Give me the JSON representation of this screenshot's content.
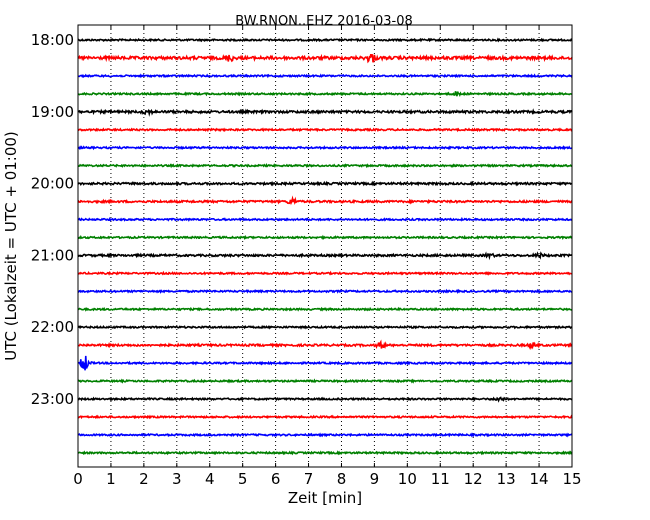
{
  "chart_data": {
    "type": "line",
    "title": "BW.RNON..EHZ 2016-03-08",
    "xlabel": "Zeit  [min]",
    "ylabel": "UTC (Lokalzeit = UTC + 01:00)",
    "xlim": [
      0,
      15
    ],
    "x_ticks": [
      "0",
      "1",
      "2",
      "3",
      "4",
      "5",
      "6",
      "7",
      "8",
      "9",
      "10",
      "11",
      "12",
      "13",
      "14",
      "15"
    ],
    "y_ticks": [
      {
        "label": "18:00",
        "trace_index": 0
      },
      {
        "label": "19:00",
        "trace_index": 4
      },
      {
        "label": "20:00",
        "trace_index": 8
      },
      {
        "label": "21:00",
        "trace_index": 12
      },
      {
        "label": "22:00",
        "trace_index": 16
      },
      {
        "label": "23:00",
        "trace_index": 20
      }
    ],
    "grid": "vertical-dotted",
    "trace_interval_min": 15,
    "series_colors": [
      "#000000",
      "#ff0000",
      "#0000ff",
      "#008000"
    ],
    "traces": [
      {
        "start": "18:00",
        "color": "#000000",
        "amplitude": 0.1,
        "events": []
      },
      {
        "start": "18:15",
        "color": "#ff0000",
        "amplitude": 0.18,
        "events": [
          {
            "t": 4.6,
            "amp": 0.35
          },
          {
            "t": 8.9,
            "amp": 0.55
          }
        ]
      },
      {
        "start": "18:30",
        "color": "#0000ff",
        "amplitude": 0.1,
        "events": []
      },
      {
        "start": "18:45",
        "color": "#008000",
        "amplitude": 0.1,
        "events": [
          {
            "t": 11.5,
            "amp": 0.25
          }
        ]
      },
      {
        "start": "19:00",
        "color": "#000000",
        "amplitude": 0.14,
        "events": [
          {
            "t": 2.1,
            "amp": 0.25
          }
        ]
      },
      {
        "start": "19:15",
        "color": "#ff0000",
        "amplitude": 0.1,
        "events": []
      },
      {
        "start": "19:30",
        "color": "#0000ff",
        "amplitude": 0.1,
        "events": []
      },
      {
        "start": "19:45",
        "color": "#008000",
        "amplitude": 0.1,
        "events": []
      },
      {
        "start": "20:00",
        "color": "#000000",
        "amplitude": 0.12,
        "events": []
      },
      {
        "start": "20:15",
        "color": "#ff0000",
        "amplitude": 0.12,
        "events": [
          {
            "t": 6.5,
            "amp": 0.35
          }
        ]
      },
      {
        "start": "20:30",
        "color": "#0000ff",
        "amplitude": 0.1,
        "events": []
      },
      {
        "start": "20:45",
        "color": "#008000",
        "amplitude": 0.1,
        "events": []
      },
      {
        "start": "21:00",
        "color": "#000000",
        "amplitude": 0.12,
        "events": [
          {
            "t": 12.5,
            "amp": 0.2
          },
          {
            "t": 14.0,
            "amp": 0.2
          }
        ]
      },
      {
        "start": "21:15",
        "color": "#ff0000",
        "amplitude": 0.1,
        "events": []
      },
      {
        "start": "21:30",
        "color": "#0000ff",
        "amplitude": 0.1,
        "events": []
      },
      {
        "start": "21:45",
        "color": "#008000",
        "amplitude": 0.1,
        "events": []
      },
      {
        "start": "22:00",
        "color": "#000000",
        "amplitude": 0.1,
        "events": []
      },
      {
        "start": "22:15",
        "color": "#ff0000",
        "amplitude": 0.12,
        "events": [
          {
            "t": 9.2,
            "amp": 0.35
          },
          {
            "t": 13.8,
            "amp": 0.25
          }
        ]
      },
      {
        "start": "22:30",
        "color": "#0000ff",
        "amplitude": 0.1,
        "events": [
          {
            "t": 0.2,
            "amp": 1.0
          }
        ]
      },
      {
        "start": "22:45",
        "color": "#008000",
        "amplitude": 0.1,
        "events": []
      },
      {
        "start": "23:00",
        "color": "#000000",
        "amplitude": 0.1,
        "events": [
          {
            "t": 12.8,
            "amp": 0.25
          }
        ]
      },
      {
        "start": "23:15",
        "color": "#ff0000",
        "amplitude": 0.1,
        "events": []
      },
      {
        "start": "23:30",
        "color": "#0000ff",
        "amplitude": 0.1,
        "events": []
      },
      {
        "start": "23:45",
        "color": "#008000",
        "amplitude": 0.1,
        "events": []
      }
    ]
  }
}
